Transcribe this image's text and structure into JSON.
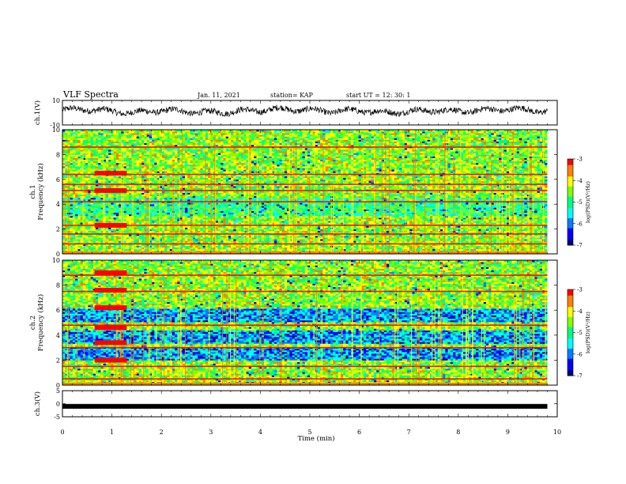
{
  "header": {
    "title": "VLF Spectra",
    "date": "Jan. 11, 2021",
    "station": "station= KAP",
    "start": "start  UT =   12: 30: 1"
  },
  "colors": {
    "background": "#ffffff",
    "axes": "#000000",
    "waveform": "#000000",
    "colormap": [
      "#00007f",
      "#0000ff",
      "#0080ff",
      "#00ffff",
      "#00ff80",
      "#80ff00",
      "#ffff00",
      "#ff8000",
      "#ff0000",
      "#ffffff"
    ]
  },
  "chart_data": [
    {
      "type": "line",
      "panel": "ch1-waveform",
      "ylabel": "ch.1(V)",
      "ylim": [
        -10,
        10
      ],
      "yticks": [
        "10",
        "-10"
      ],
      "xlim": [
        0,
        10
      ],
      "note_series": "noisy waveform fluctuating mostly between about -3 and 6 V",
      "x": [
        0,
        0.5,
        1.0,
        1.5,
        2.0,
        2.5,
        3.0,
        3.5,
        4.0,
        4.5,
        5.0,
        5.5,
        6.0,
        6.5,
        7.0,
        7.5,
        8.0,
        8.5,
        9.0,
        9.5,
        9.8
      ],
      "y": [
        2,
        3,
        1,
        0,
        2,
        1,
        0,
        1,
        2,
        3,
        2,
        1,
        2,
        0,
        1,
        2,
        1,
        2,
        3,
        2,
        1
      ]
    },
    {
      "type": "heatmap",
      "panel": "ch1-spectrogram",
      "ylabel": "ch.1\nFrequency (kHz)",
      "ylabel_lines": [
        "ch.1",
        "Frequency (kHz)"
      ],
      "ylim": [
        0,
        10
      ],
      "yticks": [
        "0",
        "2",
        "4",
        "6",
        "8",
        "10"
      ],
      "xlim": [
        0,
        10
      ],
      "data_end_min": 9.8,
      "colorbar": {
        "label": "log(PSD)(V²/Hz)",
        "range": [
          -7,
          -3
        ],
        "ticks": [
          "-3",
          "-4",
          "-5",
          "-6",
          "-7"
        ]
      },
      "red_bands_khz": [
        0.8,
        1.6,
        2.3,
        4.2,
        5.1,
        5.6,
        6.4,
        8.6
      ],
      "strong_interval_min": [
        0.65,
        1.3
      ],
      "strong_interval_bands_khz": [
        2.3,
        5.1,
        6.5
      ]
    },
    {
      "type": "heatmap",
      "panel": "ch2-spectrogram",
      "ylabel": "ch.2\nFrequency (kHz)",
      "ylabel_lines": [
        "ch.2",
        "Frequency (kHz)"
      ],
      "ylim": [
        0,
        10
      ],
      "yticks": [
        "0",
        "2",
        "4",
        "6",
        "8",
        "10"
      ],
      "xlim": [
        0,
        10
      ],
      "data_end_min": 9.8,
      "colorbar": {
        "label": "log(PSD)(V²/Hz)",
        "range": [
          -7,
          -3
        ],
        "ticks": [
          "-3",
          "-4",
          "-5",
          "-6",
          "-7"
        ]
      },
      "blue_bands_khz": [
        2.5,
        3.9,
        5.6
      ],
      "red_bands_khz": [
        0.5,
        1.5,
        3.0,
        4.8,
        7.5,
        8.8
      ],
      "strong_interval_min": [
        0.65,
        1.3
      ],
      "strong_interval_bands_khz": [
        2.0,
        3.4,
        4.6,
        6.2,
        7.6,
        9.0
      ]
    },
    {
      "type": "line",
      "panel": "ch3-waveform",
      "ylabel": "ch.3(V)",
      "ylim": [
        -5,
        5
      ],
      "yticks": [
        "5",
        "0",
        "-5"
      ],
      "xlim": [
        0,
        10
      ],
      "x": [
        0,
        9.8
      ],
      "y": [
        -1,
        -1
      ]
    }
  ],
  "xaxis": {
    "label": "Time  (min)",
    "ticks": [
      "0",
      "1",
      "2",
      "3",
      "4",
      "5",
      "6",
      "7",
      "8",
      "9",
      "10"
    ]
  }
}
